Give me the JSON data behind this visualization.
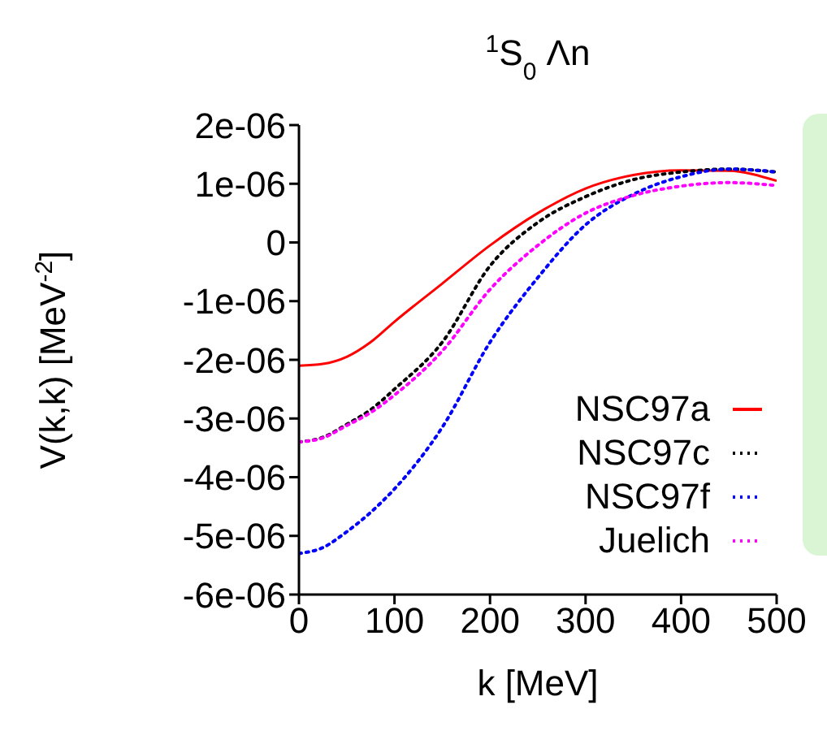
{
  "chart_data": {
    "type": "line",
    "title": "$^{1}$S$_{0}$ Λn",
    "xlabel": "k [MeV]",
    "ylabel": "V(k,k) [MeV$^{-2}$]",
    "x": [
      0,
      25,
      50,
      75,
      100,
      150,
      200,
      250,
      300,
      350,
      400,
      450,
      500
    ],
    "series": [
      {
        "name": "NSC97a",
        "color": "#ff0000",
        "line_style": "solid",
        "values": [
          -2.1e-06,
          -2.07e-06,
          -1.95e-06,
          -1.7e-06,
          -1.35e-06,
          -7e-07,
          -5e-08,
          5e-07,
          9.2e-07,
          1.15e-06,
          1.23e-06,
          1.22e-06,
          1.05e-06
        ]
      },
      {
        "name": "NSC97c",
        "color": "#000000",
        "line_style": "dotted",
        "values": [
          -3.4e-06,
          -3.32e-06,
          -3.1e-06,
          -2.85e-06,
          -2.5e-06,
          -1.7e-06,
          -4e-07,
          3.4e-07,
          7.8e-07,
          1.07e-06,
          1.2e-06,
          1.25e-06,
          1.2e-06
        ]
      },
      {
        "name": "NSC97f",
        "color": "#0000ff",
        "line_style": "dotted",
        "values": [
          -5.3e-06,
          -5.2e-06,
          -4.93e-06,
          -4.6e-06,
          -4.2e-06,
          -3.15e-06,
          -1.7e-06,
          -6e-07,
          3e-07,
          8.2e-07,
          1.12e-06,
          1.25e-06,
          1.2e-06
        ]
      },
      {
        "name": "Juelich",
        "color": "#ff00ff",
        "line_style": "dotted",
        "values": [
          -3.4e-06,
          -3.33e-06,
          -3.12e-06,
          -2.9e-06,
          -2.6e-06,
          -1.85e-06,
          -8e-07,
          -5e-08,
          5e-07,
          8e-07,
          9.6e-07,
          1.02e-06,
          9.7e-07
        ]
      }
    ],
    "xlim": [
      0,
      500
    ],
    "xticks": [
      0,
      100,
      200,
      300,
      400,
      500
    ],
    "ylim": [
      -6e-06,
      2e-06
    ],
    "yticks": [
      {
        "value": -6e-06,
        "label": "-6e-06"
      },
      {
        "value": -5e-06,
        "label": "-5e-06"
      },
      {
        "value": -4e-06,
        "label": "-4e-06"
      },
      {
        "value": -3e-06,
        "label": "-3e-06"
      },
      {
        "value": -2e-06,
        "label": "-2e-06"
      },
      {
        "value": -1e-06,
        "label": "-1e-06"
      },
      0,
      {
        "value": 1e-06,
        "label": "1e-06"
      },
      {
        "value": 2e-06,
        "label": "2e-06"
      }
    ],
    "grid": false,
    "legend": "bottom right",
    "marker": "none"
  }
}
